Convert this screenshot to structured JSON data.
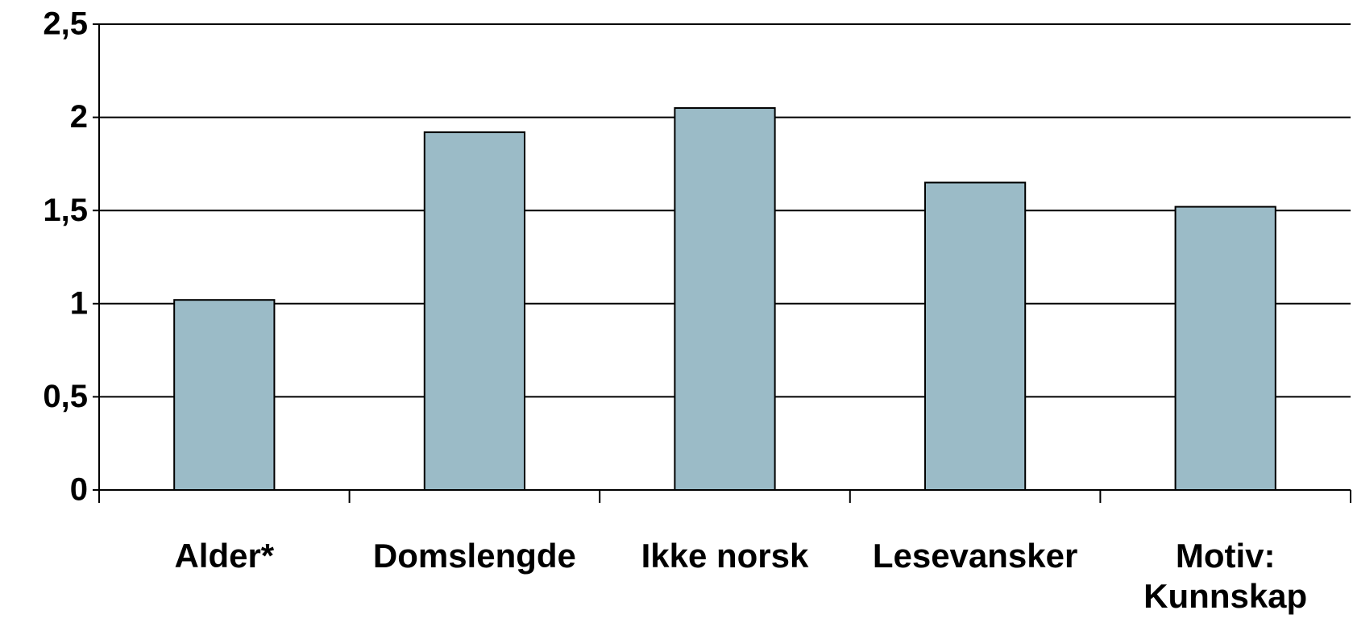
{
  "chart_data": {
    "type": "bar",
    "categories": [
      "Alder*",
      "Domslengde",
      "Ikke norsk",
      "Lesevansker",
      "Motiv: Kunnskap"
    ],
    "values": [
      1.02,
      1.92,
      2.05,
      1.65,
      1.52
    ],
    "color": "#9bbbc7",
    "ylim": [
      0,
      2.5
    ],
    "yticks": [
      0,
      {
        "value": 0.5,
        "label": "0,5"
      },
      1,
      {
        "value": 1.5,
        "label": "1,5"
      },
      2,
      {
        "value": 2.5,
        "label": "2,5"
      }
    ],
    "grid": true
  }
}
